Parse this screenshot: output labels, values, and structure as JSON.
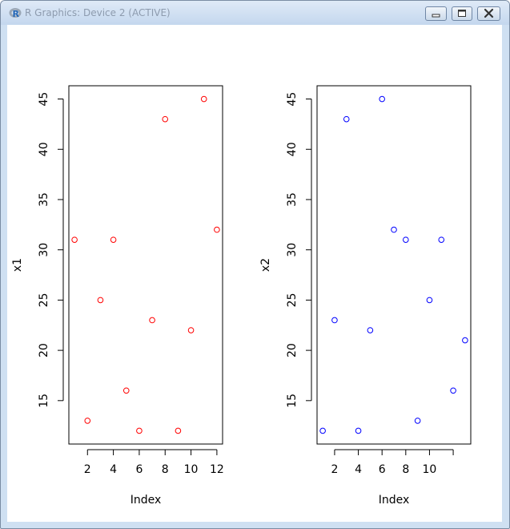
{
  "window": {
    "title": "R Graphics: Device 2 (ACTIVE)",
    "icons": {
      "app": "r-logo-icon",
      "minimize": "minimize-icon",
      "maximize": "maximize-icon",
      "close": "close-icon"
    }
  },
  "chart_data": [
    {
      "type": "scatter",
      "xlabel": "Index",
      "ylabel": "x1",
      "x": [
        1,
        2,
        3,
        4,
        5,
        6,
        7,
        8,
        9,
        10,
        11,
        12
      ],
      "y": [
        31,
        13,
        25,
        31,
        16,
        12,
        23,
        43,
        12,
        22,
        45,
        32
      ],
      "xlim": [
        0.56,
        12.44
      ],
      "ylim": [
        10.68,
        46.32
      ],
      "xticks": [
        2,
        4,
        6,
        8,
        10,
        12
      ],
      "yticks": [
        15,
        20,
        25,
        30,
        35,
        40,
        45
      ],
      "color": "#ff0000",
      "marker": "open-circle"
    },
    {
      "type": "scatter",
      "xlabel": "Index",
      "ylabel": "x2",
      "x": [
        1,
        2,
        3,
        4,
        5,
        6,
        7,
        8,
        9,
        10,
        11,
        12,
        13
      ],
      "y": [
        12,
        23,
        43,
        12,
        22,
        45,
        32,
        31,
        13,
        25,
        31,
        16,
        21
      ],
      "xlim": [
        0.52,
        13.48
      ],
      "ylim": [
        10.68,
        46.32
      ],
      "xticks": [
        2,
        4,
        6,
        8,
        10,
        12
      ],
      "xtick_labels": [
        "2",
        "4",
        "6",
        "8",
        "10",
        ""
      ],
      "yticks": [
        15,
        20,
        25,
        30,
        35,
        40,
        45
      ],
      "color": "#0000ff",
      "marker": "open-circle"
    }
  ]
}
